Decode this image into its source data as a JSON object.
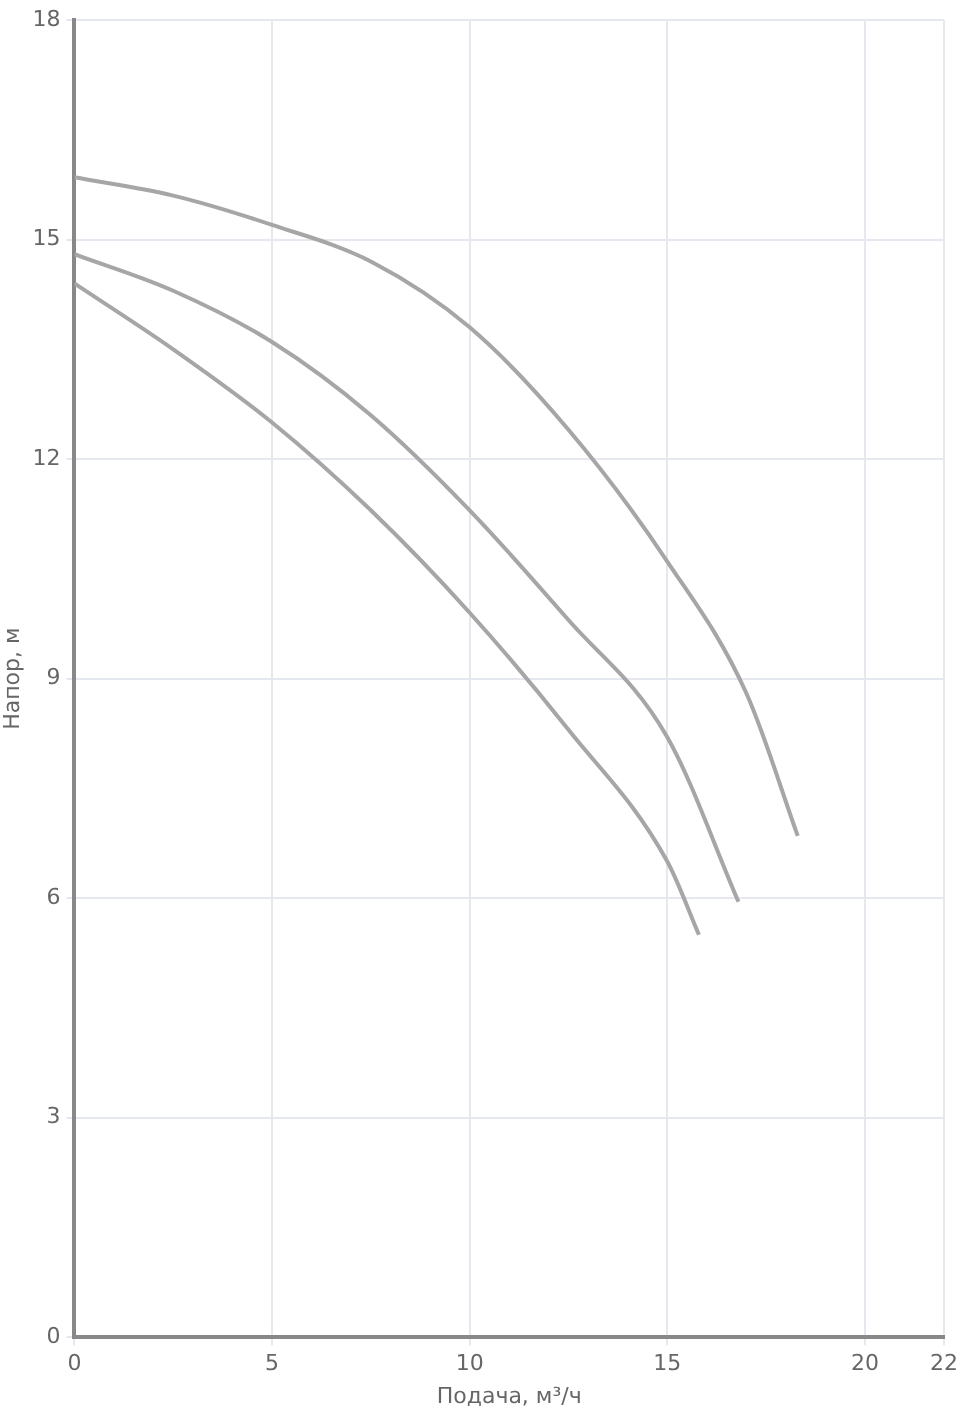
{
  "chart_data": {
    "type": "line",
    "xlabel": "Подача, м³/ч",
    "ylabel": "Напор, м",
    "xlim": [
      0,
      22
    ],
    "xticks": [
      0,
      5,
      10,
      15,
      20,
      22
    ],
    "ylim": [
      0,
      18
    ],
    "yticks": [
      0,
      3,
      6,
      9,
      12,
      15,
      18
    ],
    "grid": true,
    "legend": false,
    "marker": "none",
    "line_style": "solid",
    "series": [
      {
        "color": "#a6a6a6",
        "x": [
          0,
          2.5,
          5,
          7.5,
          10,
          12.5,
          15,
          17,
          18.3
        ],
        "values": [
          15.85,
          15.6,
          15.2,
          14.7,
          13.8,
          12.4,
          10.6,
          8.8,
          6.85
        ]
      },
      {
        "color": "#a6a6a6",
        "x": [
          0,
          2.5,
          5,
          7.5,
          10,
          12.5,
          15,
          16.8
        ],
        "values": [
          14.8,
          14.3,
          13.6,
          12.6,
          11.3,
          9.8,
          8.2,
          5.95
        ]
      },
      {
        "color": "#a6a6a6",
        "x": [
          0,
          2.5,
          5,
          7.5,
          10,
          12.5,
          15,
          15.8
        ],
        "values": [
          14.4,
          13.5,
          12.5,
          11.3,
          9.9,
          8.3,
          6.5,
          5.5
        ]
      }
    ]
  }
}
